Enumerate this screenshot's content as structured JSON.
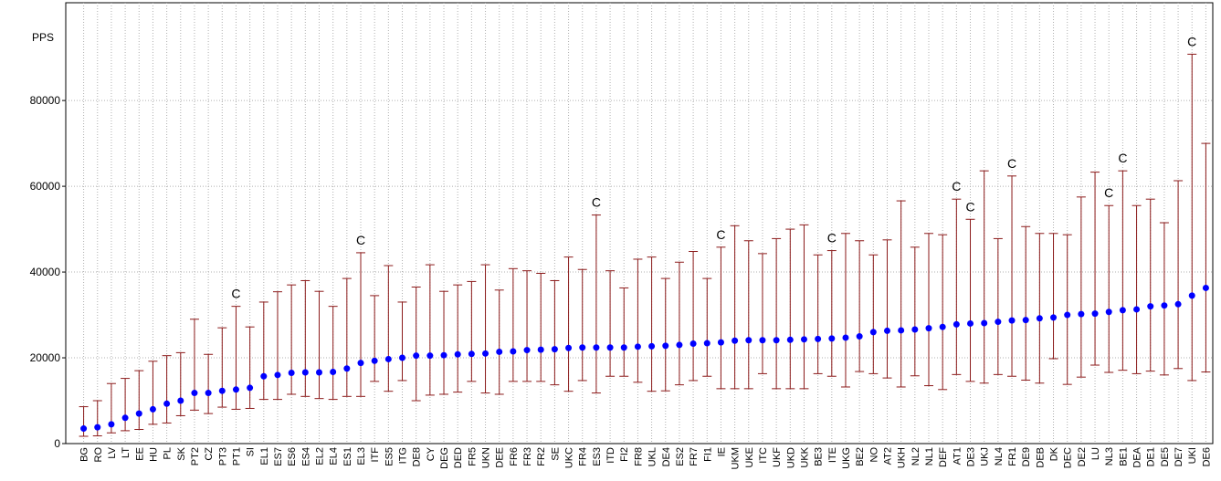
{
  "chart_data": {
    "type": "errorbar",
    "y_label": "PPS",
    "categories": [
      "BG",
      "RO",
      "LV",
      "LT",
      "EE",
      "HU",
      "PL",
      "SK",
      "PT2",
      "CZ",
      "PT3",
      "PT1",
      "SI",
      "EL1",
      "ES7",
      "ES6",
      "ES4",
      "EL2",
      "EL4",
      "ES1",
      "EL3",
      "ITF",
      "ES5",
      "ITG",
      "DE8",
      "CY",
      "DEG",
      "DED",
      "FR5",
      "UKN",
      "DEE",
      "FR6",
      "FR3",
      "FR2",
      "SE",
      "UKC",
      "FR4",
      "ES3",
      "ITD",
      "FI2",
      "FR8",
      "UKL",
      "DE4",
      "ES2",
      "FR7",
      "FI1",
      "IE",
      "UKM",
      "UKE",
      "ITC",
      "UKF",
      "UKD",
      "UKK",
      "BE3",
      "ITE",
      "UKG",
      "BE2",
      "NO",
      "AT2",
      "UKH",
      "NL2",
      "NL1",
      "DEF",
      "AT1",
      "DE3",
      "UKJ",
      "NL4",
      "FR1",
      "DE9",
      "DEB",
      "DK",
      "DEC",
      "DE2",
      "LU",
      "NL3",
      "BE1",
      "DEA",
      "DE1",
      "DE5",
      "DE7",
      "UKI",
      "DE6"
    ],
    "values": [
      3500,
      3800,
      4500,
      6000,
      7000,
      8000,
      9300,
      10000,
      11800,
      11800,
      12300,
      12600,
      13000,
      15700,
      16000,
      16500,
      16600,
      16600,
      16700,
      17500,
      18800,
      19300,
      19700,
      20000,
      20500,
      20500,
      20600,
      20800,
      20900,
      21000,
      21400,
      21500,
      21800,
      21900,
      22000,
      22300,
      22400,
      22400,
      22400,
      22400,
      22600,
      22700,
      22800,
      23000,
      23300,
      23400,
      23600,
      24000,
      24100,
      24100,
      24100,
      24200,
      24300,
      24400,
      24500,
      24700,
      25000,
      26000,
      26300,
      26400,
      26600,
      26900,
      27200,
      27800,
      28000,
      28100,
      28400,
      28700,
      28800,
      29200,
      29400,
      30000,
      30200,
      30300,
      30700,
      31100,
      31300,
      32000,
      32200,
      32500,
      34500,
      36300
    ],
    "lower": [
      1700,
      1800,
      2500,
      3000,
      3300,
      4500,
      4800,
      6500,
      7800,
      7000,
      8500,
      8000,
      8200,
      10300,
      10300,
      11500,
      11000,
      10500,
      10300,
      11000,
      11000,
      14500,
      12200,
      14700,
      10000,
      11300,
      11500,
      12000,
      14500,
      11800,
      11500,
      14500,
      14500,
      14500,
      13700,
      12200,
      14700,
      11800,
      15700,
      15700,
      14300,
      12200,
      12300,
      13700,
      14700,
      15700,
      12800,
      12800,
      12800,
      16300,
      12800,
      12800,
      12800,
      16300,
      15700,
      13200,
      16800,
      16300,
      15300,
      13200,
      15800,
      13500,
      12600,
      16100,
      14500,
      14100,
      16100,
      15700,
      14800,
      14100,
      19800,
      13800,
      15500,
      18300,
      16600,
      17100,
      16300,
      16900,
      16000,
      17500,
      14700,
      16700
    ],
    "upper": [
      8600,
      10000,
      14000,
      15200,
      17000,
      19200,
      20500,
      21200,
      29000,
      20800,
      27000,
      32000,
      27200,
      33000,
      35400,
      37000,
      38000,
      35500,
      32000,
      38500,
      44500,
      34500,
      41500,
      33000,
      36500,
      41700,
      35500,
      37000,
      37800,
      41700,
      35800,
      40800,
      40300,
      39700,
      38000,
      43500,
      40600,
      53300,
      40300,
      36300,
      43000,
      43500,
      38500,
      42300,
      44800,
      38500,
      45800,
      50800,
      47300,
      44300,
      47800,
      50000,
      51000,
      44000,
      45000,
      49000,
      47300,
      44000,
      47500,
      56600,
      45800,
      49000,
      48700,
      57000,
      52300,
      63600,
      47800,
      62400,
      50600,
      49000,
      49000,
      48700,
      57500,
      63300,
      55500,
      63600,
      55500,
      57000,
      51500,
      61300,
      90800,
      70000
    ],
    "annotations": [
      {
        "category": "PT1",
        "text": "C"
      },
      {
        "category": "EL3",
        "text": "C"
      },
      {
        "category": "ES3",
        "text": "C"
      },
      {
        "category": "IE",
        "text": "C"
      },
      {
        "category": "ITE",
        "text": "C"
      },
      {
        "category": "AT1",
        "text": "C"
      },
      {
        "category": "DE3",
        "text": "C"
      },
      {
        "category": "FR1",
        "text": "C"
      },
      {
        "category": "NL3",
        "text": "C"
      },
      {
        "category": "BE1",
        "text": "C"
      },
      {
        "category": "UKI",
        "text": "C"
      }
    ],
    "color": "#0000ff",
    "bar_color": "#8b1a1a",
    "ylim": [
      0,
      102800
    ],
    "yticks": [
      0,
      20000,
      40000,
      60000,
      80000
    ],
    "grid": true
  }
}
